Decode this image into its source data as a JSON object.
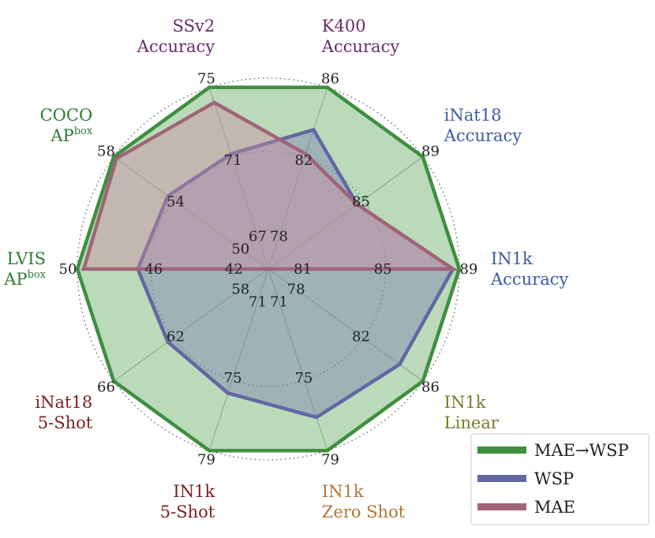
{
  "chart_data": {
    "type": "radar",
    "axes": [
      {
        "key": "in1k_acc",
        "lines": [
          {
            "text": "IN1k"
          },
          {
            "text": "Accuracy"
          }
        ],
        "color": "#3d5aa8",
        "ticks": [
          "81",
          "85",
          "89"
        ]
      },
      {
        "key": "inat18_acc",
        "lines": [
          {
            "text": "iNat18"
          },
          {
            "text": "Accuracy"
          }
        ],
        "color": "#3d5aa8",
        "ticks": [
          "85",
          "89"
        ]
      },
      {
        "key": "k400_acc",
        "lines": [
          {
            "text": "K400"
          },
          {
            "text": "Accuracy"
          }
        ],
        "color": "#6b2a6b",
        "ticks": [
          "78",
          "82",
          "86"
        ]
      },
      {
        "key": "ssv2_acc",
        "lines": [
          {
            "text": "SSv2"
          },
          {
            "text": "Accuracy"
          }
        ],
        "color": "#6b2a6b",
        "ticks": [
          "67",
          "71",
          "75"
        ]
      },
      {
        "key": "coco_ap",
        "lines": [
          {
            "text": "COCO"
          },
          {
            "text": "AP",
            "sup": "box"
          }
        ],
        "color": "#2e7d32",
        "ticks": [
          "50",
          "54",
          "58"
        ]
      },
      {
        "key": "lvis_ap",
        "lines": [
          {
            "text": "LVIS"
          },
          {
            "text": "AP",
            "sup": "box"
          }
        ],
        "color": "#2e7d32",
        "ticks": [
          "42",
          "46",
          "50"
        ]
      },
      {
        "key": "inat18_5shot",
        "lines": [
          {
            "text": "iNat18"
          },
          {
            "text": "5-Shot"
          }
        ],
        "color": "#7a1f1f",
        "ticks": [
          "58",
          "62",
          "66"
        ]
      },
      {
        "key": "in1k_5shot",
        "lines": [
          {
            "text": "IN1k"
          },
          {
            "text": "5-Shot"
          }
        ],
        "color": "#7a1f1f",
        "ticks": [
          "71",
          "75",
          "79"
        ]
      },
      {
        "key": "in1k_zeroshot",
        "lines": [
          {
            "text": "IN1k"
          },
          {
            "text": "Zero Shot"
          }
        ],
        "color": "#b5763a",
        "ticks": [
          "71",
          "75",
          "79"
        ]
      },
      {
        "key": "in1k_linear",
        "lines": [
          {
            "text": "IN1k"
          },
          {
            "text": "Linear"
          }
        ],
        "color": "#7a7a2a",
        "ticks": [
          "78",
          "82",
          "86"
        ]
      }
    ],
    "ranges": [
      [
        77,
        89
      ],
      [
        81,
        89
      ],
      [
        74,
        86
      ],
      [
        63,
        75
      ],
      [
        46,
        58
      ],
      [
        38,
        50
      ],
      [
        54,
        66
      ],
      [
        67,
        79
      ],
      [
        67,
        79
      ],
      [
        74,
        86
      ]
    ],
    "series": [
      {
        "name": "MAE→WSP",
        "color": "#3f8f3f",
        "fill": "#5aa85a",
        "fill_opacity": 0.42,
        "values": [
          89,
          89,
          86,
          75,
          58,
          50,
          66,
          79,
          79,
          86
        ]
      },
      {
        "name": "WSP",
        "color": "#6367a3",
        "fill": "#7a7db5",
        "fill_opacity": 0.42,
        "values": [
          88.6,
          85.6,
          83.2,
          70.6,
          53.8,
          46.2,
          61.8,
          75.2,
          76.8,
          84.2
        ]
      },
      {
        "name": "MAE",
        "color": "#a06478",
        "fill": "#d08aa3",
        "fill_opacity": 0.42,
        "values": [
          88.6,
          85.6,
          81.6,
          74.0,
          57.8,
          49.6,
          38,
          38,
          38,
          38
        ]
      }
    ],
    "grid": true,
    "legend_position": "bottom-right",
    "title": ""
  }
}
